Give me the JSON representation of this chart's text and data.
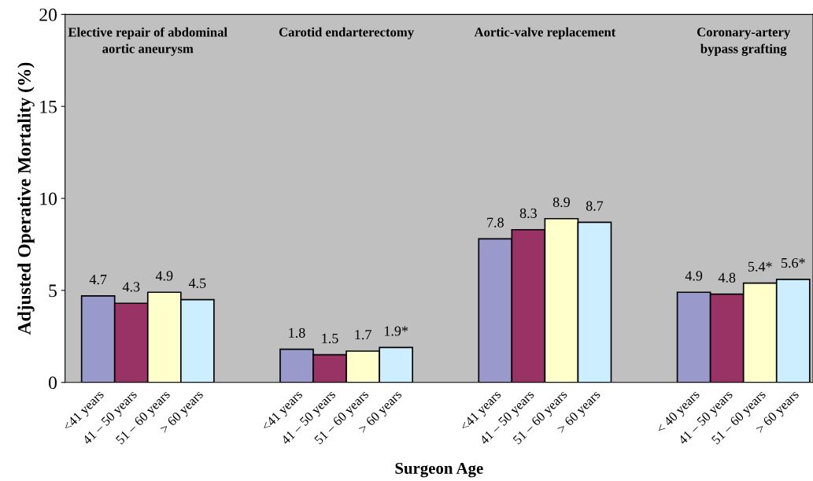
{
  "chart_data": {
    "type": "bar",
    "xlabel": "Surgeon Age",
    "ylabel": "Adjusted Operative Mortality (%)",
    "categories": [
      "<41 years",
      "41 – 50 years",
      "51 – 60 years",
      "> 60 years",
      null,
      null,
      "<41 years",
      "41 – 50 years",
      "51 – 60 years",
      "> 60 years",
      null,
      null,
      "<41 years",
      "41 – 50 years",
      "51 – 60 years",
      "> 60 years",
      null,
      null,
      "< 40 years",
      "41 – 50 years",
      "51 – 60 years",
      "> 60 years"
    ],
    "values": [
      4.7,
      4.3,
      4.9,
      4.5,
      null,
      null,
      1.8,
      1.5,
      1.7,
      1.9,
      null,
      null,
      7.8,
      8.3,
      8.9,
      8.7,
      null,
      null,
      4.9,
      4.8,
      5.4,
      5.6
    ],
    "value_labels": [
      "4.7",
      "4.3",
      "4.9",
      "4.5",
      null,
      null,
      "1.8",
      "1.5",
      "1.7",
      "1.9*",
      null,
      null,
      "7.8",
      "8.3",
      "8.9",
      "8.7",
      null,
      null,
      "4.9",
      "4.8",
      "5.4*",
      "5.6*"
    ],
    "colors": [
      "#9999cc",
      "#993366",
      "#ffffcc",
      "#cceeff",
      null,
      null,
      "#9999cc",
      "#993366",
      "#ffffcc",
      "#cceeff",
      null,
      null,
      "#9999cc",
      "#993366",
      "#ffffcc",
      "#cceeff",
      null,
      null,
      "#9999cc",
      "#993366",
      "#ffffcc",
      "#cceeff"
    ],
    "annotations": [
      "Elective repair of abdominal\naortic aneurysm",
      "Carotid endarterectomy",
      "Aortic-valve replacement",
      "Coronary-artery\nbypass grafting"
    ],
    "ylim": [
      0,
      20
    ],
    "yticks": [
      0,
      5,
      10,
      15,
      20
    ],
    "grid": false
  }
}
